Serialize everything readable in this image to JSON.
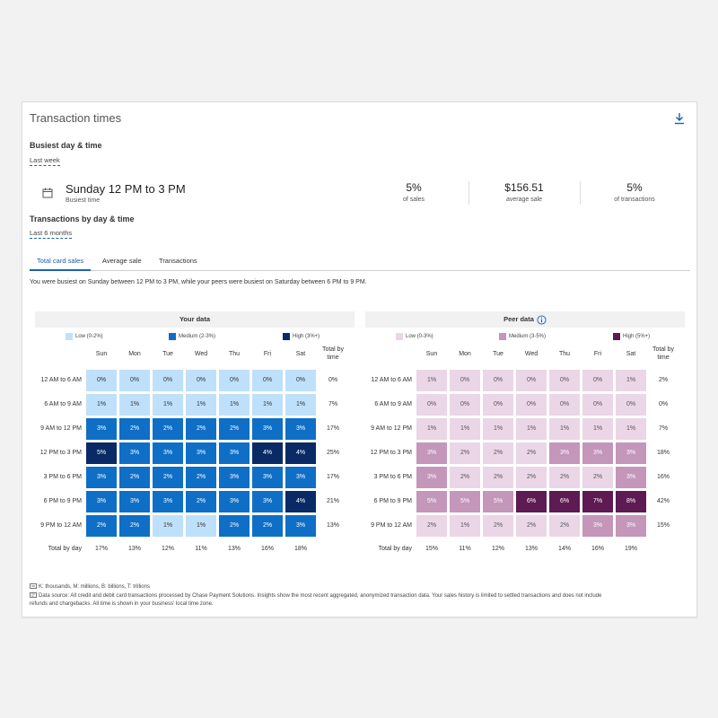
{
  "title": "Transaction times",
  "busiest": {
    "section_title": "Busiest day & time",
    "period": "Last week",
    "time": "Sunday 12 PM to 3 PM",
    "time_label": "Busiest time",
    "stats": [
      {
        "value": "5%",
        "label": "of sales"
      },
      {
        "value": "$156.51",
        "label": "average sale"
      },
      {
        "value": "5%",
        "label": "of transactions"
      }
    ]
  },
  "by_day": {
    "section_title": "Transactions by day & time",
    "period": "Last 6 months"
  },
  "tabs": [
    "Total card sales",
    "Average sale",
    "Transactions"
  ],
  "active_tab": 0,
  "insight": "You were busiest on Sunday between 12 PM to 3 PM, while your peers were busiest on Saturday between 6 PM to 9 PM.",
  "days": [
    "Sun",
    "Mon",
    "Tue",
    "Wed",
    "Thu",
    "Fri",
    "Sat"
  ],
  "total_by_time_label": "Total by time",
  "total_by_day_label": "Total by day",
  "time_slots": [
    "12 AM to 6 AM",
    "6 AM to 9 AM",
    "9 AM to 12 PM",
    "12 PM to 3 PM",
    "3 PM to 6 PM",
    "6 PM to 9 PM",
    "9 PM to 12 AM"
  ],
  "your_data": {
    "title": "Your data",
    "legend": [
      {
        "label": "Low (0-2%)",
        "color": "#bfe0fb"
      },
      {
        "label": "Medium (2-3%)",
        "color": "#0f6fc6"
      },
      {
        "label": "High (3%+)",
        "color": "#0a2a66"
      }
    ],
    "cells": [
      [
        "0%",
        "0%",
        "0%",
        "0%",
        "0%",
        "0%",
        "0%"
      ],
      [
        "1%",
        "1%",
        "1%",
        "1%",
        "1%",
        "1%",
        "1%"
      ],
      [
        "3%",
        "2%",
        "2%",
        "2%",
        "2%",
        "3%",
        "3%"
      ],
      [
        "5%",
        "3%",
        "3%",
        "3%",
        "3%",
        "4%",
        "4%"
      ],
      [
        "3%",
        "2%",
        "2%",
        "2%",
        "3%",
        "3%",
        "3%"
      ],
      [
        "3%",
        "3%",
        "3%",
        "2%",
        "3%",
        "3%",
        "4%"
      ],
      [
        "2%",
        "2%",
        "1%",
        "1%",
        "2%",
        "2%",
        "3%"
      ]
    ],
    "levels": [
      [
        0,
        0,
        0,
        0,
        0,
        0,
        0
      ],
      [
        0,
        0,
        0,
        0,
        0,
        0,
        0
      ],
      [
        1,
        1,
        1,
        1,
        1,
        1,
        1
      ],
      [
        2,
        1,
        1,
        1,
        1,
        2,
        2
      ],
      [
        1,
        1,
        1,
        1,
        1,
        1,
        1
      ],
      [
        1,
        1,
        1,
        1,
        1,
        1,
        2
      ],
      [
        1,
        1,
        0,
        0,
        1,
        1,
        1
      ]
    ],
    "row_totals": [
      "0%",
      "7%",
      "17%",
      "25%",
      "17%",
      "21%",
      "13%"
    ],
    "col_totals": [
      "17%",
      "13%",
      "12%",
      "11%",
      "13%",
      "16%",
      "18%"
    ]
  },
  "peer_data": {
    "title": "Peer data",
    "legend": [
      {
        "label": "Low (0-3%)",
        "color": "#ead6e6"
      },
      {
        "label": "Medium (3-5%)",
        "color": "#c396ba"
      },
      {
        "label": "High (5%+)",
        "color": "#5e1a52"
      }
    ],
    "cells": [
      [
        "1%",
        "0%",
        "0%",
        "0%",
        "0%",
        "0%",
        "1%"
      ],
      [
        "0%",
        "0%",
        "0%",
        "0%",
        "0%",
        "0%",
        "0%"
      ],
      [
        "1%",
        "1%",
        "1%",
        "1%",
        "1%",
        "1%",
        "1%"
      ],
      [
        "3%",
        "2%",
        "2%",
        "2%",
        "3%",
        "3%",
        "3%"
      ],
      [
        "3%",
        "2%",
        "2%",
        "2%",
        "2%",
        "2%",
        "3%"
      ],
      [
        "5%",
        "5%",
        "5%",
        "6%",
        "6%",
        "7%",
        "8%"
      ],
      [
        "2%",
        "1%",
        "2%",
        "2%",
        "2%",
        "3%",
        "3%"
      ]
    ],
    "levels": [
      [
        0,
        0,
        0,
        0,
        0,
        0,
        0
      ],
      [
        0,
        0,
        0,
        0,
        0,
        0,
        0
      ],
      [
        0,
        0,
        0,
        0,
        0,
        0,
        0
      ],
      [
        1,
        0,
        0,
        0,
        1,
        1,
        1
      ],
      [
        1,
        0,
        0,
        0,
        0,
        0,
        1
      ],
      [
        1,
        1,
        1,
        2,
        2,
        2,
        2
      ],
      [
        0,
        0,
        0,
        0,
        0,
        1,
        1
      ]
    ],
    "row_totals": [
      "2%",
      "0%",
      "7%",
      "18%",
      "16%",
      "42%",
      "15%"
    ],
    "col_totals": [
      "15%",
      "11%",
      "12%",
      "13%",
      "14%",
      "16%",
      "19%"
    ]
  },
  "footnotes": [
    "K: thousands, M: millions, B: billions, T: trillions",
    "Data source: All credit and debit card transactions processed by Chase Payment Solutions. Insights show the most recent aggregated, anonymized transaction data. Your sales history is limited to settled transactions and does not include",
    "refunds and chargebacks. All time is shown in your business' local time zone."
  ],
  "colors": {
    "accent": "#1a5fb4",
    "your_low": "#bfe0fb",
    "your_med": "#0f6fc6",
    "your_high": "#0a2a66",
    "peer_low": "#ead6e6",
    "peer_med": "#c396ba",
    "peer_high": "#5e1a52"
  }
}
